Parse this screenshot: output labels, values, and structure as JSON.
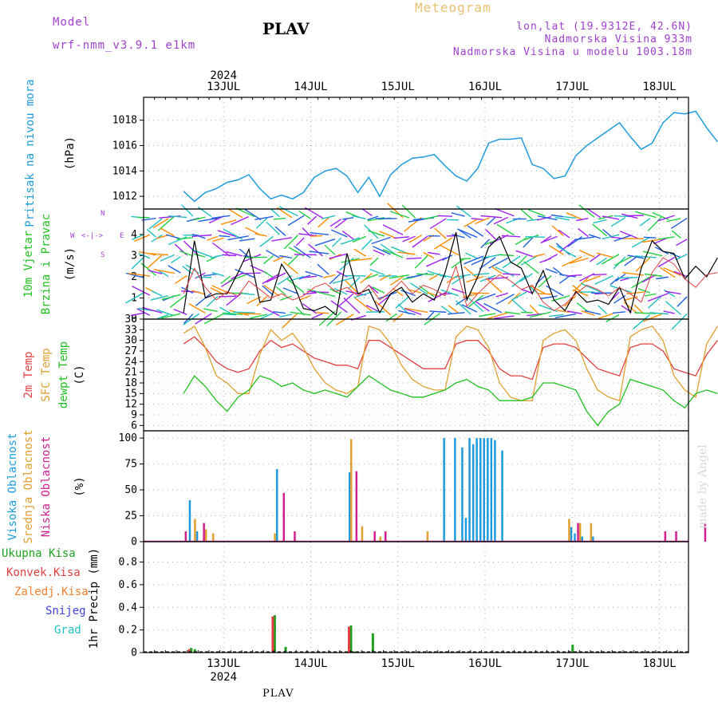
{
  "header": {
    "model_label": "Model",
    "model_name": "wrf-nmm_v3.9.1 e1km",
    "station": "PLAV",
    "meteogram_label": "Meteogram",
    "coords": "lon,lat (19.9312E, 42.6N)",
    "elevation": "Nadmorska Visina 933m",
    "model_elevation": "Nadmorska Visina u modelu 1003.18m"
  },
  "footer": {
    "station": "PLAV",
    "watermark": "made by Angel"
  },
  "colors": {
    "pressure": "#1e9bdc",
    "temp2m": "#e04040",
    "sfctemp": "#e0a030",
    "dewpoint": "#20c020",
    "cloud_high": "#1e9bdc",
    "cloud_mid": "#e0a030",
    "cloud_low": "#d02090",
    "precip_total": "#20a020",
    "precip_conv": "#e04040",
    "precip_frozen": "#f08030",
    "snow": "#4040e0",
    "hail": "#20c0c0",
    "wind_label": "#20c020"
  },
  "chart_data": [
    {
      "type": "line",
      "name": "pressure",
      "ylabel": "Pritisak na nivou mora",
      "unit": "(hPa)",
      "yticks": [
        1012,
        1014,
        1016,
        1018
      ],
      "ylim": [
        1011,
        1019.8
      ],
      "x_hours": [
        0,
        3,
        6,
        9,
        12,
        15,
        18,
        21,
        24,
        27,
        30,
        33,
        36,
        39,
        42,
        45,
        48,
        51,
        54,
        57,
        60,
        63,
        66,
        69,
        72,
        75,
        78,
        81,
        84,
        87,
        90,
        93,
        96,
        99,
        102,
        105,
        108,
        111,
        114,
        117,
        120,
        123,
        126,
        129,
        132,
        135,
        138,
        141,
        144,
        147
      ],
      "values": [
        1012.4,
        1011.6,
        1012.3,
        1012.6,
        1013.1,
        1013.3,
        1013.7,
        1012.6,
        1011.8,
        1012.1,
        1011.8,
        1012.3,
        1013.5,
        1014.0,
        1014.2,
        1013.6,
        1012.3,
        1013.5,
        1012.0,
        1013.7,
        1014.5,
        1015.0,
        1015.1,
        1015.3,
        1014.4,
        1013.6,
        1013.2,
        1014.2,
        1016.2,
        1016.5,
        1016.5,
        1016.6,
        1014.5,
        1014.2,
        1013.4,
        1013.6,
        1015.2,
        1016.0,
        1016.6,
        1017.2,
        1017.8,
        1016.7,
        1015.7,
        1016.2,
        1017.8,
        1018.6,
        1018.5,
        1018.7,
        1017.4,
        1016.3
      ]
    },
    {
      "type": "line",
      "name": "wind",
      "ylabel": "10m Vjetar",
      "ylabel2": "Brzina i Pravac",
      "unit": "(m/s)",
      "compass": [
        "W",
        "<-|->",
        "E",
        "N",
        "S"
      ],
      "yticks": [
        0,
        1,
        2,
        3,
        4
      ],
      "ylim": [
        0,
        5.2
      ],
      "x_hours": [
        0,
        3,
        6,
        9,
        12,
        15,
        18,
        21,
        24,
        27,
        30,
        33,
        36,
        39,
        42,
        45,
        48,
        51,
        54,
        57,
        60,
        63,
        66,
        69,
        72,
        75,
        78,
        81,
        84,
        87,
        90,
        93,
        96,
        99,
        102,
        105,
        108,
        111,
        114,
        117,
        120,
        123,
        126,
        129,
        132,
        135,
        138,
        141,
        144,
        147
      ],
      "values": [
        0.3,
        3.7,
        1.0,
        1.2,
        1.2,
        2.2,
        3.3,
        0.8,
        0.9,
        2.6,
        1.8,
        0.5,
        0.4,
        0.6,
        0.2,
        3.1,
        1.2,
        1.4,
        0.3,
        1.2,
        1.5,
        0.8,
        1.2,
        0.9,
        2.2,
        4.1,
        0.9,
        2.0,
        3.4,
        3.9,
        2.7,
        2.4,
        1.2,
        2.3,
        0.9,
        0.4,
        1.3,
        0.8,
        0.9,
        0.7,
        1.5,
        0.3,
        2.4,
        3.7,
        3.2,
        3.1,
        1.9,
        2.5,
        2.0,
        2.9
      ],
      "gust_values": [
        1.2,
        2.4,
        1.5,
        0.9,
        1.3,
        1.1,
        1.8,
        1.4,
        1.0,
        1.2,
        0.9,
        1.1,
        1.5,
        1.7,
        1.3,
        1.5,
        1.1,
        1.6,
        0.9,
        1.3,
        1.8,
        1.2,
        1.6,
        1.4,
        1.1,
        2.5,
        0.6,
        1.2,
        1.7,
        2.1,
        1.8,
        1.4,
        1.6,
        0.8,
        0.4,
        0.7,
        1.2,
        1.6,
        1.4,
        1.1,
        1.5,
        1.2,
        0.8,
        2.2,
        2.9,
        2.6,
        1.9,
        1.5,
        2.1,
        2.2
      ]
    },
    {
      "type": "line",
      "name": "temperature",
      "ylabel": "2m Temp",
      "ylabel2": "SFC Temp",
      "ylabel3": "dewpt Temp",
      "unit": "(C)",
      "yticks": [
        6,
        9,
        12,
        15,
        18,
        21,
        24,
        27,
        30,
        33,
        36
      ],
      "ylim": [
        4.5,
        36
      ],
      "x_hours": [
        0,
        3,
        6,
        9,
        12,
        15,
        18,
        21,
        24,
        27,
        30,
        33,
        36,
        39,
        42,
        45,
        48,
        51,
        54,
        57,
        60,
        63,
        66,
        69,
        72,
        75,
        78,
        81,
        84,
        87,
        90,
        93,
        96,
        99,
        102,
        105,
        108,
        111,
        114,
        117,
        120,
        123,
        126,
        129,
        132,
        135,
        138,
        141,
        144,
        147
      ],
      "series": [
        {
          "name": "2m Temp",
          "values": [
            29,
            31,
            28,
            24,
            22,
            21,
            22,
            27,
            30,
            28,
            29,
            27,
            25,
            24,
            23,
            23,
            22,
            30,
            30,
            28,
            26,
            24,
            22,
            22,
            22,
            29,
            30,
            30,
            27,
            22,
            20,
            20,
            19,
            28,
            29,
            29,
            28,
            25,
            22,
            21,
            20,
            28,
            29,
            29,
            27,
            22,
            21,
            20,
            26,
            30
          ]
        },
        {
          "name": "SFC Temp",
          "values": [
            32,
            34,
            28,
            20,
            18,
            15,
            15,
            26,
            33,
            30,
            32,
            28,
            22,
            18,
            16,
            15,
            17,
            34,
            33,
            29,
            23,
            19,
            17,
            16,
            16,
            31,
            34,
            33,
            28,
            18,
            14,
            13,
            13,
            30,
            32,
            33,
            30,
            22,
            16,
            14,
            13,
            31,
            33,
            34,
            30,
            20,
            16,
            14,
            29,
            34
          ]
        },
        {
          "name": "dewpt Temp",
          "values": [
            15,
            20,
            17,
            13,
            10,
            14,
            16,
            20,
            19,
            17,
            18,
            16,
            15,
            16,
            15,
            14,
            17,
            20,
            18,
            16,
            15,
            14,
            14,
            15,
            16,
            18,
            19,
            17,
            16,
            13,
            13,
            13,
            14,
            18,
            18,
            17,
            16,
            10,
            6,
            10,
            12,
            19,
            18,
            17,
            16,
            13,
            11,
            15,
            16,
            15
          ]
        }
      ]
    },
    {
      "type": "bar",
      "name": "cloud",
      "ylabel": "Visoka Oblacnost",
      "ylabel2": "Srednja Oblacnost",
      "ylabel3": "Niska Oblacnost",
      "unit": "(%)",
      "yticks": [
        0,
        25,
        50,
        75,
        100
      ],
      "ylim": [
        0,
        107
      ],
      "series": [
        {
          "name": "Visoka Oblacnost",
          "hours": [
            2,
            4,
            26,
            46,
            72,
            75,
            77,
            78,
            79,
            80,
            81,
            82,
            83,
            84,
            85,
            86,
            88,
            107,
            108,
            110,
            113
          ],
          "values": [
            40,
            10,
            70,
            67,
            100,
            100,
            91,
            23,
            100,
            94,
            100,
            100,
            100,
            100,
            100,
            98,
            88,
            14,
            8,
            5,
            5
          ]
        },
        {
          "name": "Srednja Oblacnost",
          "hours": [
            3,
            6,
            8,
            25,
            46,
            49,
            54,
            67,
            106,
            109,
            112,
            148
          ],
          "values": [
            22,
            12,
            8,
            8,
            99,
            15,
            5,
            10,
            22,
            18,
            18,
            10
          ]
        },
        {
          "name": "Niska Oblacnost",
          "hours": [
            0,
            5,
            27,
            30,
            47,
            52,
            55,
            108,
            132,
            135,
            143,
            147
          ],
          "values": [
            10,
            18,
            47,
            10,
            68,
            10,
            10,
            18,
            10,
            10,
            18,
            10
          ]
        }
      ]
    },
    {
      "type": "bar",
      "name": "precipitation",
      "ylabel": "1hr Precip",
      "unit": "(mm)",
      "legend": [
        "Ukupna Kisa",
        "Konvek.Kisa",
        "Zaledj.Kisa",
        "Snijeg",
        "Grad"
      ],
      "yticks": [
        0,
        0.2,
        0.4,
        0.6,
        0.8
      ],
      "ylim": [
        0,
        0.98
      ],
      "series": [
        {
          "name": "Ukupna Kisa",
          "hours": [
            2,
            3,
            25,
            28,
            46,
            47,
            52,
            107
          ],
          "values": [
            0.04,
            0.03,
            0.33,
            0.05,
            0.24,
            0.01,
            0.17,
            0.07
          ]
        },
        {
          "name": "Konvek.Kisa",
          "hours": [
            2,
            25,
            46
          ],
          "values": [
            0.03,
            0.32,
            0.23
          ]
        }
      ]
    }
  ],
  "x_axis": {
    "year": "2024",
    "start_hour_offset": -11,
    "date_labels": [
      "13JUL",
      "14JUL",
      "15JUL",
      "16JUL",
      "17JUL",
      "18JUL"
    ],
    "date_hours": [
      11,
      35,
      59,
      83,
      107,
      131
    ],
    "hours_total": 150
  }
}
